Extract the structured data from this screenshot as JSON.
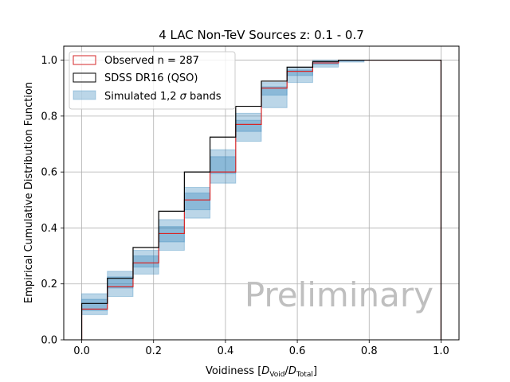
{
  "chart_data": {
    "type": "line",
    "step_type": "post",
    "title": "4 LAC Non-TeV Sources z: 0.1 - 0.7",
    "xlabel_prefix": "Voidiness [",
    "xlabel_d": "D",
    "xlabel_sub_void": "Void",
    "xlabel_slash": "/",
    "xlabel_sub_total": "Total",
    "xlabel_suffix": "]",
    "ylabel": "Empirical Cumulative Distribution Function",
    "xlim": [
      -0.05,
      1.05
    ],
    "ylim": [
      0.0,
      1.05
    ],
    "x_ticks": [
      0.0,
      0.2,
      0.4,
      0.6,
      0.8,
      1.0
    ],
    "x_tick_labels": [
      "0.0",
      "0.2",
      "0.4",
      "0.6",
      "0.8",
      "1.0"
    ],
    "y_ticks": [
      0.0,
      0.2,
      0.4,
      0.6,
      0.8,
      1.0
    ],
    "y_tick_labels": [
      "0.0",
      "0.2",
      "0.4",
      "0.6",
      "0.8",
      "1.0"
    ],
    "grid": true,
    "legend_position": "top-left",
    "bin_edges": [
      0.0,
      0.0714,
      0.1429,
      0.2143,
      0.2857,
      0.3571,
      0.4286,
      0.5,
      0.5714,
      0.6429,
      0.7143,
      0.7857,
      0.8571,
      0.9286,
      1.0
    ],
    "series": [
      {
        "name": "Observed n = 287",
        "color": "#d62728",
        "style": "step",
        "values": [
          0.11,
          0.19,
          0.275,
          0.38,
          0.5,
          0.6,
          0.77,
          0.9,
          0.96,
          0.99,
          1.0,
          1.0,
          1.0,
          1.0
        ]
      },
      {
        "name": "SDSS DR16 (QSO)",
        "color": "#000000",
        "style": "step",
        "values": [
          0.13,
          0.22,
          0.33,
          0.46,
          0.6,
          0.725,
          0.835,
          0.925,
          0.975,
          0.995,
          1.0,
          1.0,
          1.0,
          1.0
        ]
      },
      {
        "name": "Simulated 1,2 σ bands",
        "color": "#1f77b4",
        "style": "band",
        "band_1sigma_low": [
          0.105,
          0.185,
          0.26,
          0.35,
          0.465,
          0.595,
          0.745,
          0.875,
          0.945,
          0.985,
          0.997,
          1.0,
          1.0,
          1.0
        ],
        "band_1sigma_high": [
          0.145,
          0.225,
          0.3,
          0.405,
          0.525,
          0.655,
          0.785,
          0.905,
          0.965,
          0.993,
          1.0,
          1.0,
          1.0,
          1.0
        ],
        "band_2sigma_low": [
          0.09,
          0.155,
          0.235,
          0.32,
          0.435,
          0.56,
          0.71,
          0.83,
          0.92,
          0.975,
          0.993,
          1.0,
          1.0,
          1.0
        ],
        "band_2sigma_high": [
          0.165,
          0.245,
          0.32,
          0.43,
          0.545,
          0.68,
          0.81,
          0.92,
          0.975,
          1.0,
          1.0,
          1.0,
          1.0,
          1.0
        ]
      }
    ],
    "legend": {
      "observed_label": "Observed n = 287",
      "sdss_label": "SDSS DR16 (QSO)",
      "band_label_prefix": "Simulated 1,2 ",
      "band_label_sigma": "σ",
      "band_label_suffix": " bands"
    },
    "watermark": "Preliminary"
  }
}
